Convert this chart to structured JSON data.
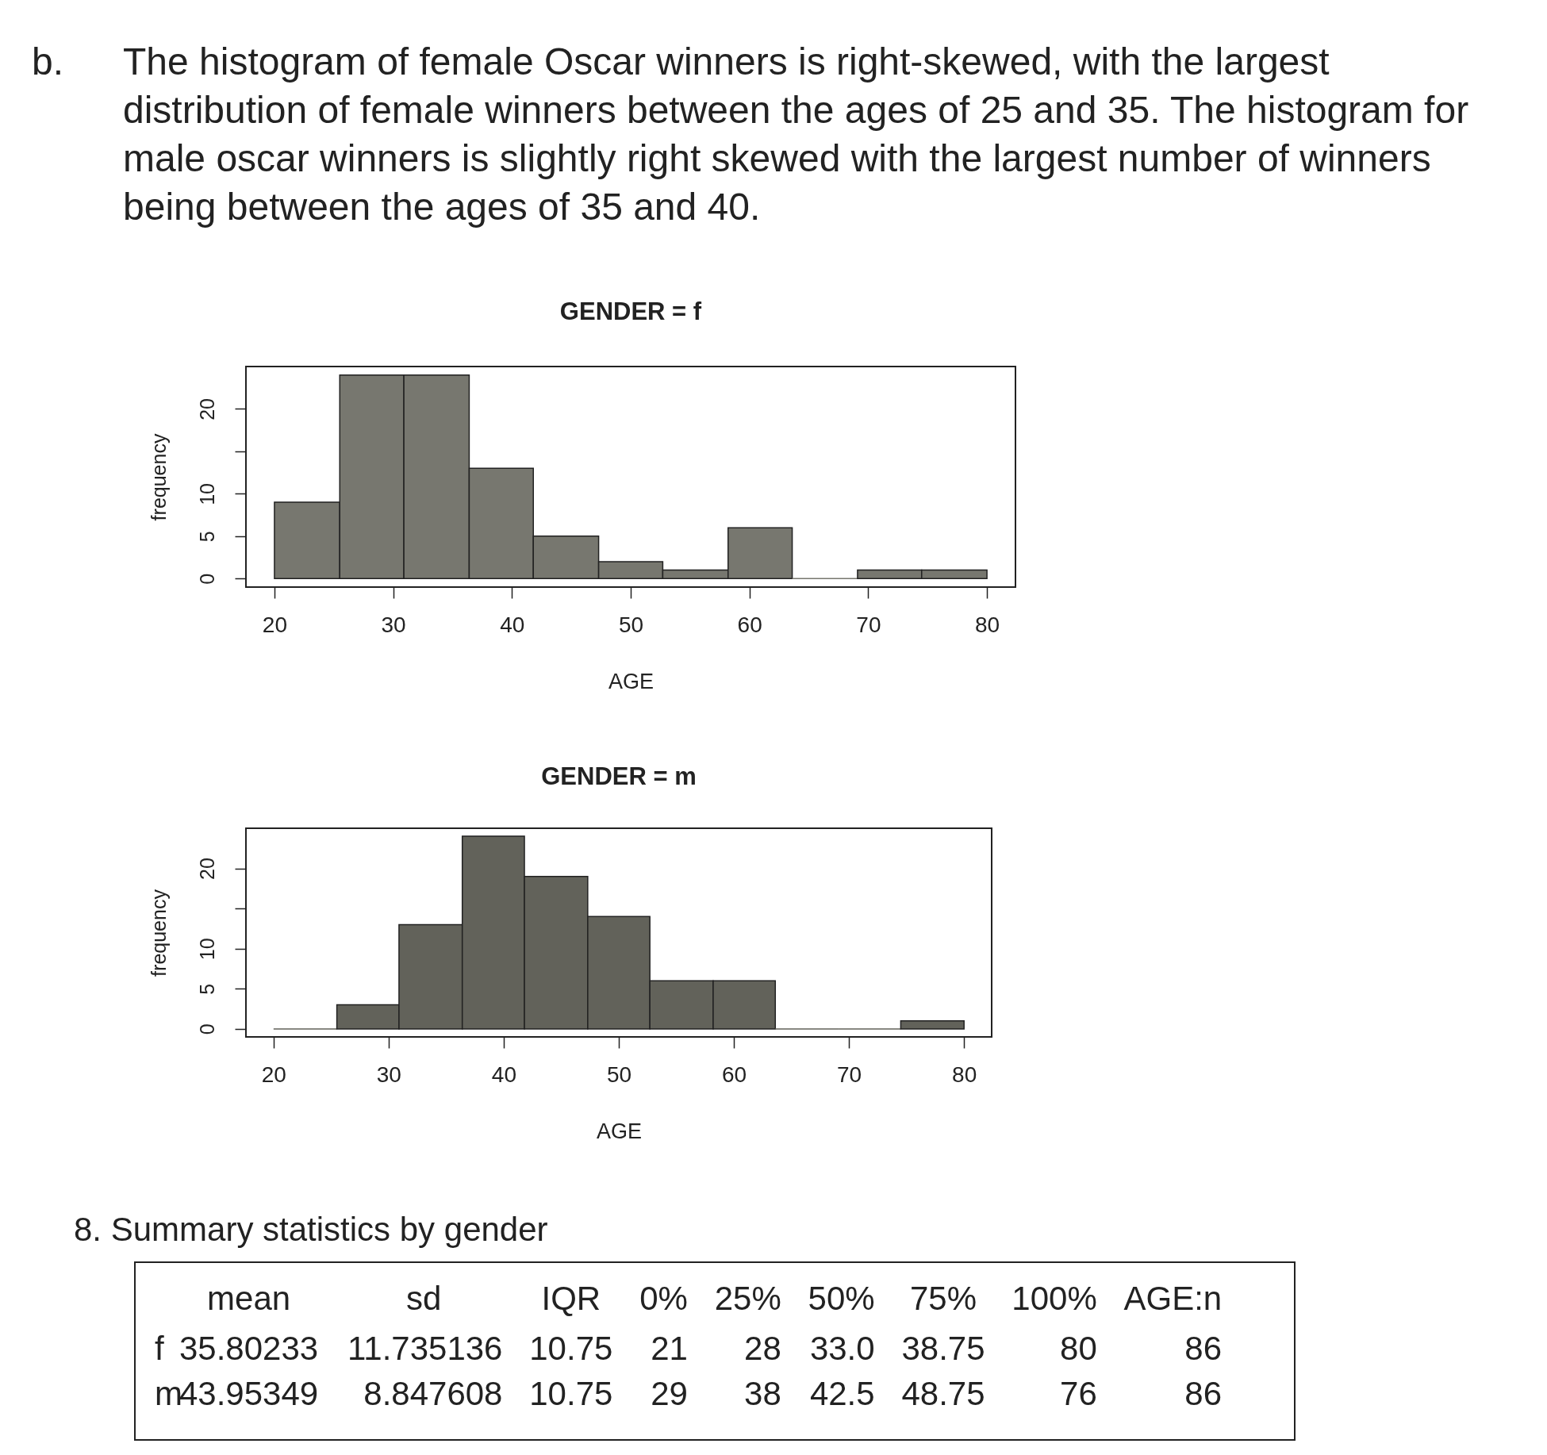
{
  "chart_data": [
    {
      "type": "other",
      "annotations": [
        "b.",
        "The histogram of female Oscar winners is right-skewed, with the largest distribution of female winners between the ages of 25 and 35. The histogram for male oscar winners is slightly right skewed with the largest number of winners being between the ages of 35 and 40."
      ]
    },
    {
      "type": "histogram",
      "title": "GENDER = f",
      "xlabel": "AGE",
      "ylabel": "frequency",
      "bins": [
        20,
        25.5,
        30.9,
        36.4,
        41.8,
        47.3,
        52.7,
        58.2,
        63.6,
        69.1,
        74.5,
        80
      ],
      "values": [
        9,
        24,
        24,
        13,
        5,
        2,
        1,
        6,
        0,
        1,
        1
      ],
      "color": "#77776f",
      "xlim": [
        17.6,
        82.4
      ],
      "xticks": [
        20,
        30,
        40,
        50,
        60,
        70,
        80
      ],
      "ylim": [
        -1,
        25
      ],
      "yticks": [
        0,
        5,
        10,
        {
          "value": 15,
          "label": null
        },
        20
      ]
    },
    {
      "type": "histogram",
      "title": "GENDER = m",
      "xlabel": "AGE",
      "ylabel": "frequency",
      "bins": [
        20,
        25.5,
        30.9,
        36.4,
        41.8,
        47.3,
        52.7,
        58.2,
        63.6,
        69.1,
        74.5,
        80
      ],
      "values": [
        0,
        3,
        13,
        24,
        19,
        14,
        6,
        6,
        0,
        0,
        1
      ],
      "color": "#62625a",
      "xlim": [
        17.6,
        82.4
      ],
      "xticks": [
        20,
        30,
        40,
        50,
        60,
        70,
        80
      ],
      "ylim": [
        -1,
        25
      ],
      "yticks": [
        0,
        5,
        10,
        {
          "value": 15,
          "label": null
        },
        20
      ]
    },
    {
      "type": "heatmap",
      "title": "8. Summary statistics by gender",
      "categories": [
        "mean",
        "sd",
        "IQR",
        "0%",
        "25%",
        "50%",
        "75%",
        "100%",
        "AGE:n"
      ],
      "y_categories": [
        "f",
        "m"
      ],
      "cells": [
        [
          35.80233,
          11.735136,
          10.75,
          21,
          28,
          33.0,
          38.75,
          80,
          86
        ],
        [
          43.95349,
          8.847608,
          10.75,
          29,
          38,
          42.5,
          48.75,
          76,
          86
        ]
      ],
      "cell_labels": [
        [
          "35.80233",
          "11.735136",
          "10.75",
          "21",
          "28",
          "33.0",
          "38.75",
          "80",
          "86"
        ],
        [
          "43.95349",
          "8.847608",
          "10.75",
          "29",
          "38",
          "42.5",
          "48.75",
          "76",
          "86"
        ]
      ]
    }
  ]
}
